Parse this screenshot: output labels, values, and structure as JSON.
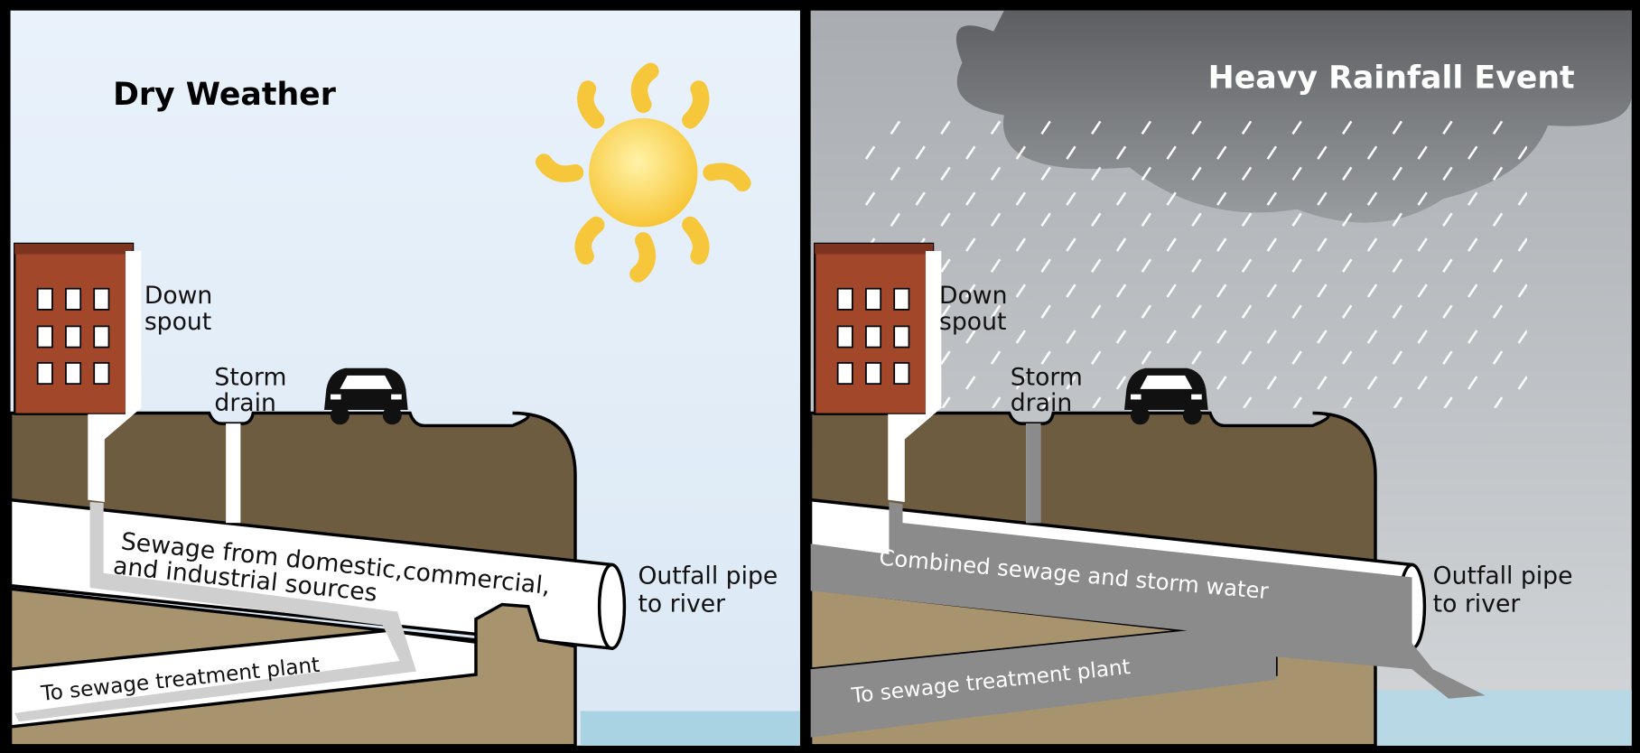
{
  "panels": [
    {
      "title": "Dry Weather",
      "downspout": [
        "Down",
        "spout"
      ],
      "storm_drain": [
        "Storm",
        "drain"
      ],
      "pipe_label": [
        "Sewage from domestic,commercial,",
        "and industrial sources"
      ],
      "outfall": [
        "Outfall pipe",
        "to river"
      ],
      "treatment": "To sewage treatment plant"
    },
    {
      "title": "Heavy Rainfall Event",
      "downspout": [
        "Down",
        "spout"
      ],
      "storm_drain": [
        "Storm",
        "drain"
      ],
      "pipe_label": [
        "Combined sewage and storm water"
      ],
      "outfall": [
        "Outfall pipe",
        "to river"
      ],
      "treatment": "To sewage treatment plant"
    }
  ]
}
